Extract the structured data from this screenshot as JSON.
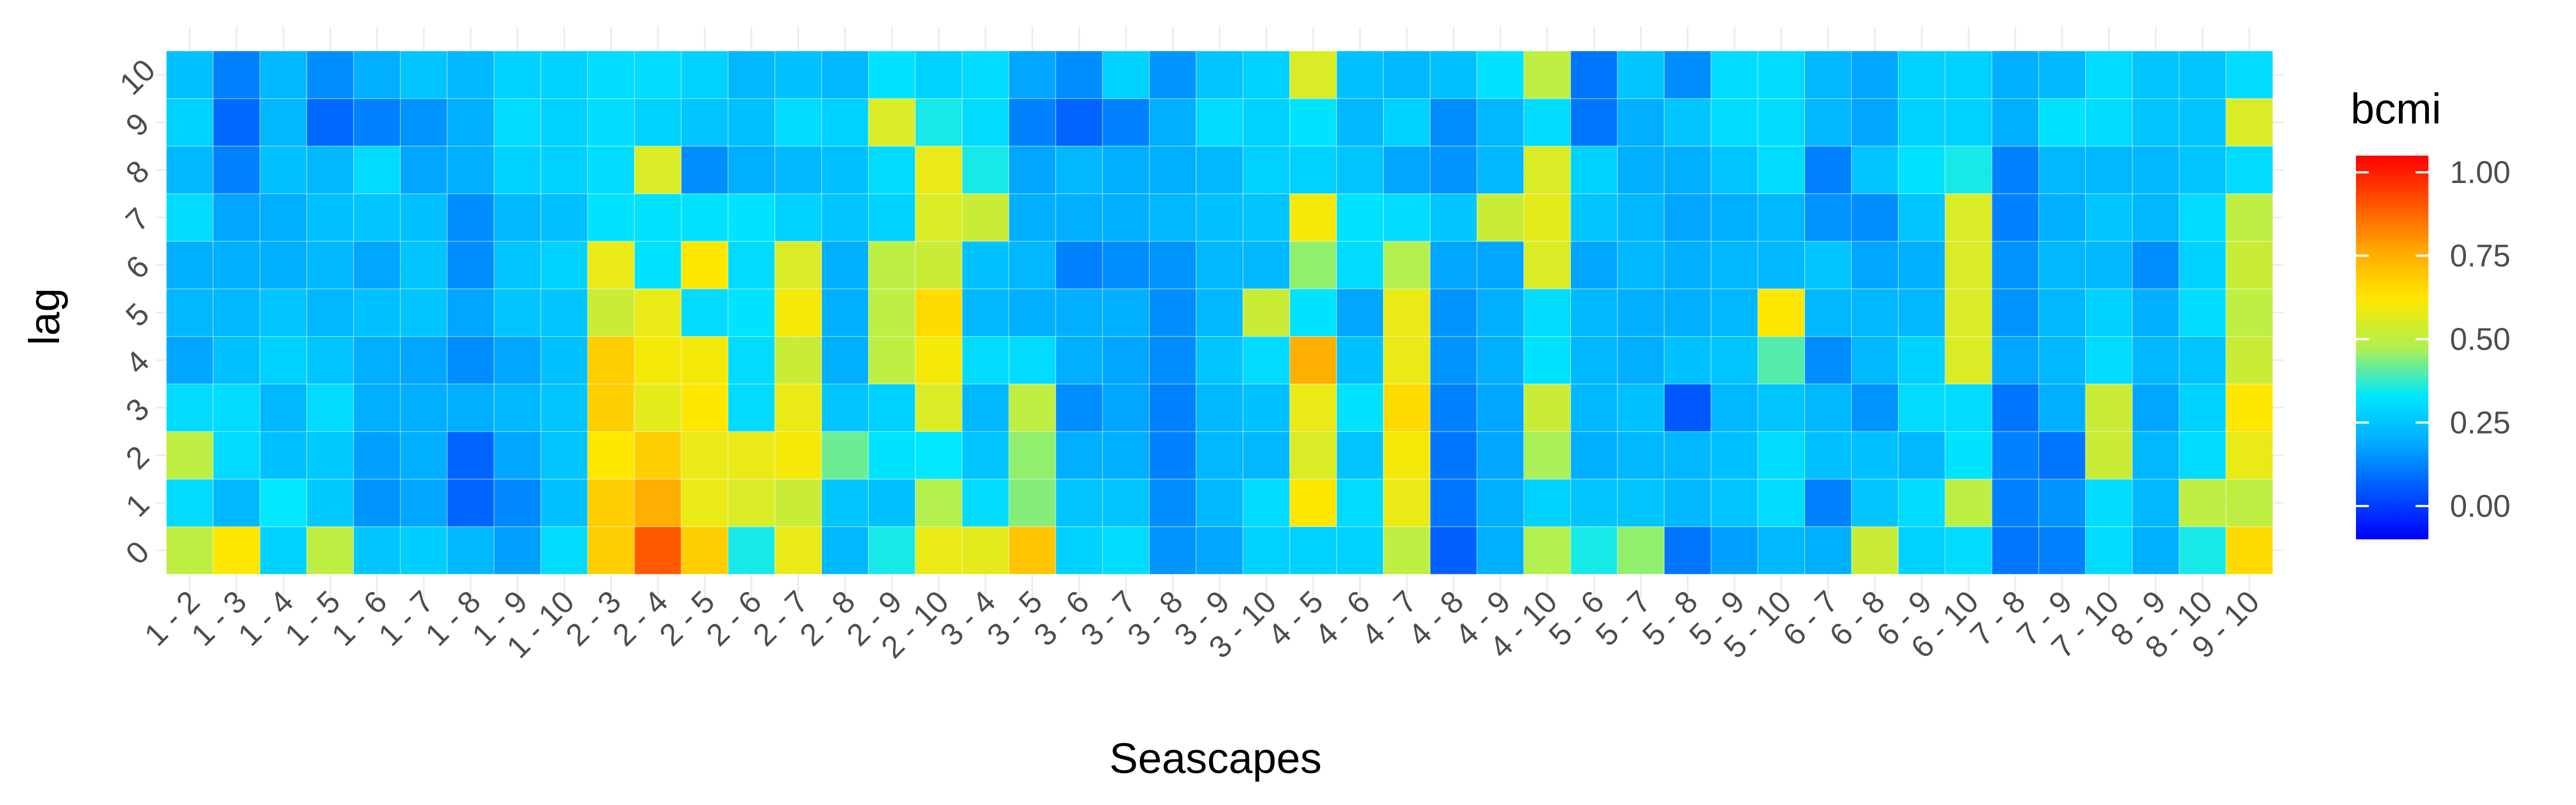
{
  "chart_data": {
    "type": "heatmap",
    "xlabel": "Seascapes",
    "ylabel": "lag",
    "x_categories": [
      "1 - 2",
      "1 - 3",
      "1 - 4",
      "1 - 5",
      "1 - 6",
      "1 - 7",
      "1 - 8",
      "1 - 9",
      "1 - 10",
      "2 - 3",
      "2 - 4",
      "2 - 5",
      "2 - 6",
      "2 - 7",
      "2 - 8",
      "2 - 9",
      "2 - 10",
      "3 - 4",
      "3 - 5",
      "3 - 6",
      "3 - 7",
      "3 - 8",
      "3 - 9",
      "3 - 10",
      "4 - 5",
      "4 - 6",
      "4 - 7",
      "4 - 8",
      "4 - 9",
      "4 - 10",
      "5 - 6",
      "5 - 7",
      "5 - 8",
      "5 - 9",
      "5 - 10",
      "6 - 7",
      "6 - 8",
      "6 - 9",
      "6 - 10",
      "7 - 8",
      "7 - 9",
      "7 - 10",
      "8 - 9",
      "8 - 10",
      "9 - 10"
    ],
    "y_categories": [
      "0",
      "1",
      "2",
      "3",
      "4",
      "5",
      "6",
      "7",
      "8",
      "9",
      "10"
    ],
    "legend": {
      "title": "bcmi",
      "position": "right",
      "limits": [
        -0.1,
        1.05
      ],
      "ticks": [
        0.0,
        0.25,
        0.5,
        0.75,
        1.0
      ],
      "tick_labels": [
        "0.00",
        "0.25",
        "0.50",
        "0.75",
        "1.00"
      ],
      "colors": [
        "#0000ff",
        "#0055ff",
        "#00aaff",
        "#00e8ff",
        "#b0f050",
        "#ffe800",
        "#ffaa00",
        "#ff5500",
        "#ff0000"
      ]
    },
    "grid": true,
    "values": [
      [
        0.5,
        0.62,
        0.28,
        0.5,
        0.25,
        0.27,
        0.22,
        0.17,
        0.3,
        0.68,
        0.9,
        0.68,
        0.35,
        0.58,
        0.22,
        0.35,
        0.58,
        0.57,
        0.7,
        0.28,
        0.3,
        0.15,
        0.18,
        0.28,
        0.28,
        0.28,
        0.5,
        0.06,
        0.2,
        0.48,
        0.35,
        0.45,
        0.1,
        0.17,
        0.22,
        0.2,
        0.52,
        0.28,
        0.3,
        0.1,
        0.12,
        0.3,
        0.2,
        0.35,
        0.65
      ],
      [
        0.3,
        0.22,
        0.33,
        0.26,
        0.15,
        0.18,
        0.07,
        0.13,
        0.24,
        0.68,
        0.75,
        0.58,
        0.55,
        0.52,
        0.25,
        0.24,
        0.48,
        0.3,
        0.44,
        0.25,
        0.25,
        0.14,
        0.22,
        0.3,
        0.62,
        0.3,
        0.58,
        0.1,
        0.2,
        0.28,
        0.25,
        0.25,
        0.22,
        0.25,
        0.3,
        0.12,
        0.25,
        0.3,
        0.5,
        0.12,
        0.15,
        0.3,
        0.22,
        0.5,
        0.5
      ],
      [
        0.5,
        0.3,
        0.24,
        0.26,
        0.17,
        0.2,
        0.07,
        0.18,
        0.25,
        0.62,
        0.68,
        0.58,
        0.58,
        0.6,
        0.42,
        0.32,
        0.33,
        0.25,
        0.45,
        0.2,
        0.2,
        0.12,
        0.22,
        0.22,
        0.55,
        0.25,
        0.6,
        0.1,
        0.18,
        0.47,
        0.2,
        0.22,
        0.22,
        0.24,
        0.3,
        0.24,
        0.24,
        0.22,
        0.32,
        0.12,
        0.1,
        0.52,
        0.22,
        0.3,
        0.58
      ],
      [
        0.3,
        0.3,
        0.22,
        0.3,
        0.2,
        0.2,
        0.2,
        0.22,
        0.25,
        0.68,
        0.57,
        0.62,
        0.3,
        0.58,
        0.25,
        0.28,
        0.55,
        0.22,
        0.5,
        0.14,
        0.18,
        0.12,
        0.22,
        0.24,
        0.58,
        0.32,
        0.65,
        0.12,
        0.18,
        0.52,
        0.22,
        0.24,
        0.05,
        0.22,
        0.25,
        0.22,
        0.15,
        0.3,
        0.3,
        0.1,
        0.2,
        0.52,
        0.18,
        0.28,
        0.62
      ],
      [
        0.18,
        0.24,
        0.28,
        0.25,
        0.2,
        0.18,
        0.14,
        0.18,
        0.24,
        0.68,
        0.6,
        0.6,
        0.3,
        0.52,
        0.2,
        0.5,
        0.6,
        0.3,
        0.3,
        0.2,
        0.18,
        0.14,
        0.25,
        0.3,
        0.75,
        0.24,
        0.58,
        0.15,
        0.2,
        0.32,
        0.22,
        0.2,
        0.24,
        0.25,
        0.4,
        0.14,
        0.22,
        0.28,
        0.55,
        0.18,
        0.22,
        0.3,
        0.22,
        0.25,
        0.52
      ],
      [
        0.22,
        0.22,
        0.25,
        0.22,
        0.24,
        0.25,
        0.18,
        0.25,
        0.25,
        0.52,
        0.58,
        0.3,
        0.32,
        0.6,
        0.2,
        0.5,
        0.65,
        0.22,
        0.2,
        0.2,
        0.2,
        0.14,
        0.22,
        0.52,
        0.32,
        0.18,
        0.58,
        0.15,
        0.2,
        0.3,
        0.22,
        0.2,
        0.2,
        0.22,
        0.62,
        0.22,
        0.22,
        0.22,
        0.55,
        0.15,
        0.22,
        0.28,
        0.2,
        0.3,
        0.5
      ],
      [
        0.2,
        0.2,
        0.2,
        0.22,
        0.18,
        0.25,
        0.14,
        0.25,
        0.28,
        0.58,
        0.32,
        0.62,
        0.3,
        0.55,
        0.2,
        0.5,
        0.52,
        0.24,
        0.22,
        0.12,
        0.14,
        0.15,
        0.22,
        0.22,
        0.45,
        0.3,
        0.48,
        0.18,
        0.18,
        0.55,
        0.18,
        0.22,
        0.2,
        0.22,
        0.22,
        0.25,
        0.18,
        0.2,
        0.55,
        0.15,
        0.22,
        0.22,
        0.14,
        0.28,
        0.52
      ],
      [
        0.3,
        0.18,
        0.2,
        0.24,
        0.25,
        0.24,
        0.14,
        0.22,
        0.24,
        0.32,
        0.32,
        0.32,
        0.32,
        0.28,
        0.25,
        0.28,
        0.55,
        0.52,
        0.2,
        0.2,
        0.2,
        0.22,
        0.24,
        0.25,
        0.6,
        0.32,
        0.3,
        0.25,
        0.52,
        0.57,
        0.25,
        0.22,
        0.18,
        0.2,
        0.22,
        0.15,
        0.14,
        0.25,
        0.55,
        0.12,
        0.2,
        0.25,
        0.22,
        0.3,
        0.5
      ],
      [
        0.22,
        0.12,
        0.24,
        0.22,
        0.3,
        0.18,
        0.2,
        0.28,
        0.28,
        0.3,
        0.55,
        0.14,
        0.2,
        0.22,
        0.24,
        0.3,
        0.58,
        0.35,
        0.18,
        0.22,
        0.2,
        0.2,
        0.22,
        0.28,
        0.28,
        0.25,
        0.18,
        0.15,
        0.22,
        0.55,
        0.28,
        0.2,
        0.2,
        0.25,
        0.3,
        0.12,
        0.25,
        0.32,
        0.35,
        0.12,
        0.22,
        0.22,
        0.22,
        0.25,
        0.3
      ],
      [
        0.28,
        0.08,
        0.22,
        0.08,
        0.12,
        0.15,
        0.2,
        0.3,
        0.28,
        0.3,
        0.28,
        0.25,
        0.24,
        0.3,
        0.28,
        0.55,
        0.35,
        0.3,
        0.12,
        0.07,
        0.12,
        0.2,
        0.3,
        0.28,
        0.32,
        0.22,
        0.28,
        0.14,
        0.22,
        0.3,
        0.1,
        0.2,
        0.25,
        0.3,
        0.3,
        0.22,
        0.18,
        0.28,
        0.28,
        0.2,
        0.32,
        0.3,
        0.25,
        0.25,
        0.55
      ],
      [
        0.24,
        0.12,
        0.22,
        0.14,
        0.2,
        0.25,
        0.22,
        0.28,
        0.28,
        0.3,
        0.3,
        0.28,
        0.22,
        0.24,
        0.22,
        0.32,
        0.28,
        0.3,
        0.18,
        0.14,
        0.28,
        0.15,
        0.25,
        0.28,
        0.55,
        0.24,
        0.22,
        0.24,
        0.32,
        0.5,
        0.1,
        0.25,
        0.14,
        0.3,
        0.3,
        0.22,
        0.18,
        0.28,
        0.28,
        0.2,
        0.22,
        0.3,
        0.25,
        0.25,
        0.3
      ]
    ]
  }
}
